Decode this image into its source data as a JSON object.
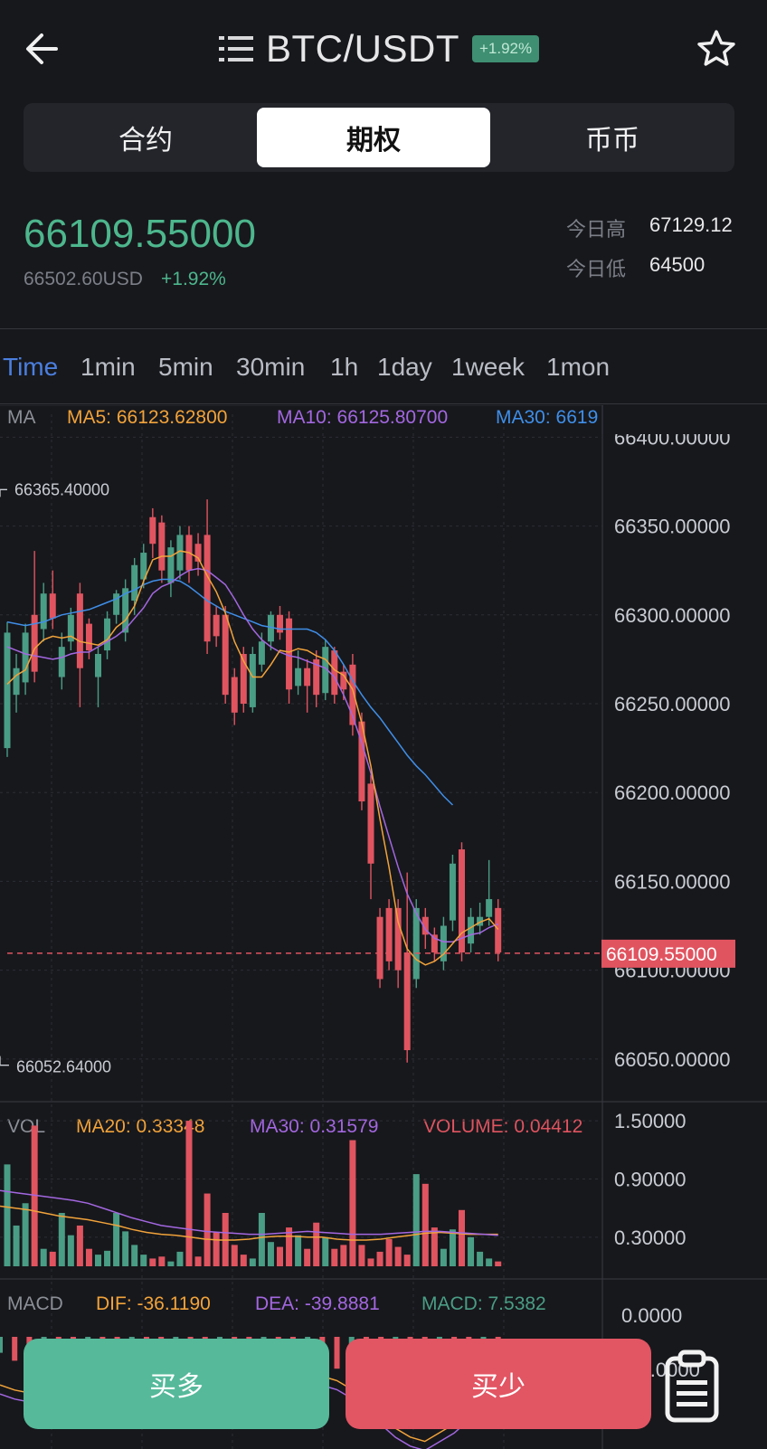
{
  "header": {
    "pair": "BTC/USDT",
    "change_badge": "+1.92%",
    "icons": {
      "back": "arrow-left-icon",
      "menu": "list-icon",
      "favorite": "star-icon"
    }
  },
  "segments": [
    {
      "label": "合约",
      "active": false
    },
    {
      "label": "期权",
      "active": true
    },
    {
      "label": "币币",
      "active": false
    }
  ],
  "ticker": {
    "last_price": "66109.55000",
    "usd_price": "66502.60USD",
    "change_pct": "+1.92%",
    "high_label": "今日高",
    "high_value": "67129.12",
    "low_label": "今日低",
    "low_value": "64500"
  },
  "time_tabs": [
    "Time",
    "1min",
    "5min",
    "30min",
    "1h",
    "1day",
    "1week",
    "1mon"
  ],
  "active_time_tab": "Time",
  "colors": {
    "up": "#4a9d85",
    "down": "#e05460",
    "ma5": "#f2a33a",
    "ma10": "#a367e0",
    "ma30": "#3f8ee8",
    "accent": "#4b7fe0"
  },
  "chart_data": {
    "type": "candlestick",
    "price_pane": {
      "legend": {
        "prefix": "MA",
        "ma5": "MA5: 66123.62800",
        "ma10": "MA10: 66125.80700",
        "ma30": "MA30: 6619"
      },
      "y_ticks": [
        "66400.00000",
        "66350.00000",
        "66300.00000",
        "66250.00000",
        "66200.00000",
        "66150.00000",
        "66100.00000",
        "66050.00000"
      ],
      "y_tick_values": [
        66400,
        66350,
        66300,
        66250,
        66200,
        66150,
        66100,
        66050
      ],
      "ylim": [
        66026,
        66418
      ],
      "high_annotation": "66365.40000",
      "high_value": 66365.4,
      "low_annotation": "66052.64000",
      "low_value": 66052.64,
      "current_price_label": "66109.55000",
      "current_price": 66109.55,
      "candles": [
        [
          66225,
          66290,
          66220,
          66296
        ],
        [
          66255,
          66270,
          66245,
          66278
        ],
        [
          66262,
          66290,
          66255,
          66295
        ],
        [
          66300,
          66268,
          66262,
          66336
        ],
        [
          66292,
          66312,
          66285,
          66318
        ],
        [
          66312,
          66298,
          66292,
          66325
        ],
        [
          66265,
          66282,
          66258,
          66290
        ],
        [
          66285,
          66300,
          66280,
          66304
        ],
        [
          66312,
          66270,
          66248,
          66318
        ],
        [
          66295,
          66280,
          66275,
          66298
        ],
        [
          66265,
          66278,
          66248,
          66282
        ],
        [
          66280,
          66298,
          66275,
          66302
        ],
        [
          66300,
          66312,
          66295,
          66314
        ],
        [
          66290,
          66315,
          66285,
          66320
        ],
        [
          66308,
          66328,
          66300,
          66332
        ],
        [
          66320,
          66335,
          66315,
          66340
        ],
        [
          66355,
          66340,
          66332,
          66360
        ],
        [
          66352,
          66325,
          66318,
          66356
        ],
        [
          66318,
          66338,
          66310,
          66342
        ],
        [
          66325,
          66345,
          66320,
          66350
        ],
        [
          66345,
          66325,
          66318,
          66350
        ],
        [
          66340,
          66330,
          66322,
          66346
        ],
        [
          66345,
          66285,
          66278,
          66365
        ],
        [
          66300,
          66288,
          66282,
          66305
        ],
        [
          66300,
          66255,
          66250,
          66305
        ],
        [
          66265,
          66245,
          66238,
          66270
        ],
        [
          66278,
          66250,
          66245,
          66282
        ],
        [
          66248,
          66278,
          66245,
          66282
        ],
        [
          66272,
          66285,
          66268,
          66290
        ],
        [
          66285,
          66300,
          66280,
          66302
        ],
        [
          66300,
          66290,
          66286,
          66305
        ],
        [
          66298,
          66258,
          66250,
          66302
        ],
        [
          66260,
          66270,
          66255,
          66280
        ],
        [
          66270,
          66260,
          66245,
          66275
        ],
        [
          66275,
          66255,
          66248,
          66280
        ],
        [
          66256,
          66282,
          66252,
          66286
        ],
        [
          66280,
          66255,
          66250,
          66282
        ],
        [
          66268,
          66258,
          66252,
          66272
        ],
        [
          66272,
          66238,
          66232,
          66278
        ],
        [
          66240,
          66195,
          66190,
          66245
        ],
        [
          66205,
          66160,
          66140,
          66210
        ],
        [
          66130,
          66095,
          66090,
          66135
        ],
        [
          66135,
          66105,
          66100,
          66140
        ],
        [
          66135,
          66100,
          66090,
          66140
        ],
        [
          66110,
          66055,
          66048,
          66155
        ],
        [
          66095,
          66135,
          66090,
          66140
        ],
        [
          66130,
          66120,
          66112,
          66135
        ],
        [
          66120,
          66110,
          66105,
          66124
        ],
        [
          66105,
          66125,
          66100,
          66130
        ],
        [
          66128,
          66160,
          66122,
          66165
        ],
        [
          66168,
          66110,
          66105,
          66172
        ],
        [
          66115,
          66130,
          66110,
          66135
        ],
        [
          66125,
          66130,
          66120,
          66138
        ],
        [
          66130,
          66140,
          66125,
          66162
        ],
        [
          66135,
          66110,
          66105,
          66140
        ]
      ],
      "ma5": [
        66261,
        66266,
        66269,
        66281,
        66286,
        66288,
        66287,
        66288,
        66285,
        66284,
        66283,
        66286,
        66293,
        66297,
        66305,
        66319,
        66331,
        66333,
        66333,
        66336,
        66335,
        66332,
        66322,
        66313,
        66301,
        66285,
        66274,
        66265,
        66265,
        66272,
        66280,
        66279,
        66281,
        66280,
        66277,
        66275,
        66269,
        66266,
        66258,
        66239,
        66215,
        66185,
        66158,
        66127,
        66112,
        66106,
        66103,
        66105,
        66109,
        66115,
        66121,
        66124,
        66127,
        66129,
        66123
      ],
      "ma10": [
        66282,
        66280,
        66278,
        66277,
        66276,
        66275,
        66276,
        66278,
        66279,
        66279,
        66282,
        66285,
        66288,
        66292,
        66298,
        66304,
        66312,
        66316,
        66318,
        66322,
        66325,
        66326,
        66325,
        66321,
        66317,
        66309,
        66300,
        66292,
        66286,
        66282,
        66279,
        66277,
        66276,
        66274,
        66272,
        66270,
        66265,
        66255,
        66243,
        66228,
        66211,
        66192,
        66175,
        66158,
        66143,
        66132,
        66123,
        66118,
        66116,
        66116,
        66118,
        66120,
        66121,
        66124,
        66126
      ],
      "ma30_count": 50,
      "ma30": [
        66296,
        66295,
        66294,
        66295,
        66296,
        66298,
        66300,
        66301,
        66302,
        66303,
        66305,
        66307,
        66309,
        66312,
        66314,
        66317,
        66319,
        66320,
        66320,
        66319,
        66316,
        66312,
        66308,
        66305,
        66302,
        66300,
        66298,
        66296,
        66294,
        66293,
        66292,
        66292,
        66292,
        66292,
        66290,
        66286,
        66280,
        66272,
        66263,
        66255,
        66248,
        66242,
        66235,
        66228,
        66221,
        66215,
        66210,
        66204,
        66198,
        66193
      ]
    },
    "volume_pane": {
      "legend": {
        "prefix": "VOL",
        "ma20": "MA20: 0.33348",
        "ma30": "MA30: 0.31579",
        "volume": "VOLUME: 0.04412"
      },
      "y_ticks": [
        "1.50000",
        "0.90000",
        "0.30000"
      ],
      "y_tick_values": [
        1.5,
        0.9,
        0.3
      ],
      "ylim": [
        0,
        1.65
      ],
      "volumes": [
        1.05,
        0.42,
        0.65,
        1.45,
        0.18,
        0.15,
        0.55,
        0.32,
        0.42,
        0.18,
        0.12,
        0.16,
        0.55,
        0.36,
        0.22,
        0.12,
        0.08,
        0.1,
        0.05,
        0.15,
        1.5,
        0.1,
        0.75,
        0.35,
        0.55,
        0.22,
        0.12,
        0.08,
        0.55,
        0.25,
        0.2,
        0.4,
        0.32,
        0.18,
        0.45,
        0.3,
        0.18,
        0.22,
        1.3,
        0.22,
        0.08,
        0.15,
        0.28,
        0.2,
        0.12,
        0.95,
        0.85,
        0.4,
        0.18,
        0.38,
        0.58,
        0.3,
        0.15,
        0.08,
        0.05
      ],
      "ma_line_a": [
        0.62,
        0.6,
        0.58,
        0.55,
        0.52,
        0.5,
        0.48,
        0.45,
        0.42,
        0.38,
        0.35,
        0.33,
        0.32,
        0.3,
        0.28,
        0.27,
        0.27,
        0.28,
        0.3,
        0.31,
        0.31,
        0.3,
        0.3,
        0.28,
        0.27,
        0.27,
        0.28,
        0.3,
        0.32,
        0.34,
        0.35,
        0.34,
        0.33,
        0.33,
        0.33
      ],
      "ma_line_b": [
        0.78,
        0.76,
        0.74,
        0.72,
        0.7,
        0.68,
        0.65,
        0.6,
        0.55,
        0.5,
        0.46,
        0.42,
        0.4,
        0.38,
        0.36,
        0.35,
        0.34,
        0.33,
        0.33,
        0.34,
        0.35,
        0.36,
        0.35,
        0.34,
        0.33,
        0.33,
        0.33,
        0.34,
        0.35,
        0.36,
        0.36,
        0.35,
        0.34,
        0.33,
        0.32
      ]
    },
    "macd_pane": {
      "legend": {
        "prefix": "MACD",
        "dif": "DIF: -36.1190",
        "dea": "DEA: -39.8881",
        "macd": "MACD: 7.5382"
      },
      "y_ticks": [
        "0.0000",
        "-60.0000"
      ],
      "histogram": [
        -8,
        -12,
        -15,
        -13,
        -10,
        -8,
        -6,
        -5,
        -4,
        -3,
        -4,
        -6,
        -8,
        -10,
        -8,
        -6,
        -4,
        -3,
        -5,
        -8,
        -10,
        -12,
        -14,
        -16,
        -20,
        -26,
        -32,
        -38,
        -42,
        -44,
        -40,
        -36,
        -30,
        -25,
        -18
      ]
    }
  },
  "actions": {
    "buy_long": "买多",
    "buy_short": "买少",
    "orders_icon": "clipboard-list-icon"
  }
}
